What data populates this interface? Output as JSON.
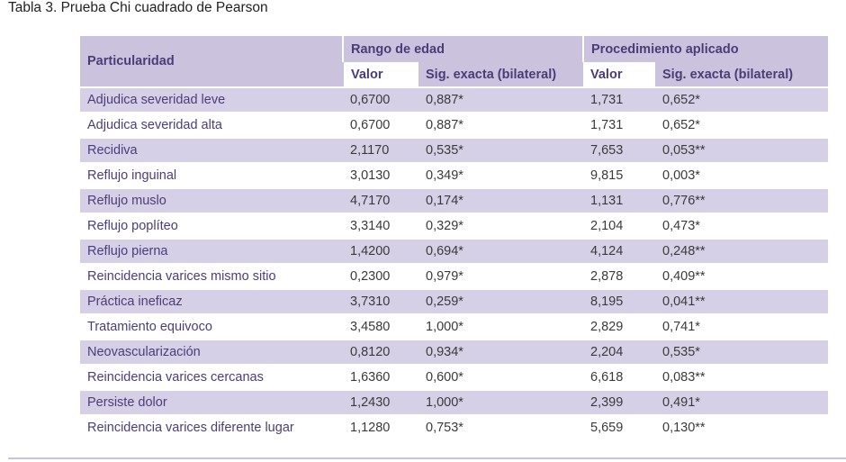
{
  "caption": "Tabla 3. Prueba Chi cuadrado de Pearson",
  "header": {
    "particularidad": "Particularidad",
    "group1": "Rango de edad",
    "group2": "Procedimiento aplicado",
    "valor1": "Valor",
    "sig1": "Sig. exacta (bilateral)",
    "valor2": "Valor",
    "sig2": "Sig. exacta (bilateral)"
  },
  "rows": [
    {
      "name": "Adjudica severidad leve",
      "edad_valor": "0,6700",
      "edad_sig": "0,887*",
      "proc_valor": "1,731",
      "proc_sig": "0,652*"
    },
    {
      "name": "Adjudica severidad alta",
      "edad_valor": "0,6700",
      "edad_sig": "0,887*",
      "proc_valor": "1,731",
      "proc_sig": "0,652*"
    },
    {
      "name": "Recidiva",
      "edad_valor": "2,1170",
      "edad_sig": "0,535*",
      "proc_valor": "7,653",
      "proc_sig": "0,053**"
    },
    {
      "name": "Reflujo inguinal",
      "edad_valor": "3,0130",
      "edad_sig": "0,349*",
      "proc_valor": "9,815",
      "proc_sig": "0,003*"
    },
    {
      "name": "Reflujo muslo",
      "edad_valor": "4,7170",
      "edad_sig": "0,174*",
      "proc_valor": "1,131",
      "proc_sig": "0,776**"
    },
    {
      "name": "Reflujo poplíteo",
      "edad_valor": "3,3140",
      "edad_sig": "0,329*",
      "proc_valor": "2,104",
      "proc_sig": "0,473*"
    },
    {
      "name": "Reflujo pierna",
      "edad_valor": "1,4200",
      "edad_sig": "0,694*",
      "proc_valor": "4,124",
      "proc_sig": "0,248**"
    },
    {
      "name": "Reincidencia varices mismo sitio",
      "edad_valor": "0,2300",
      "edad_sig": "0,979*",
      "proc_valor": "2,878",
      "proc_sig": "0,409**"
    },
    {
      "name": "Práctica ineficaz",
      "edad_valor": "3,7310",
      "edad_sig": "0,259*",
      "proc_valor": "8,195",
      "proc_sig": "0,041**"
    },
    {
      "name": "Tratamiento equivoco",
      "edad_valor": "3,4580",
      "edad_sig": "1,000*",
      "proc_valor": "2,829",
      "proc_sig": "0,741*"
    },
    {
      "name": "Neovascularización",
      "edad_valor": "0,8120",
      "edad_sig": "0,934*",
      "proc_valor": "2,204",
      "proc_sig": "0,535*"
    },
    {
      "name": "Reincidencia varices cercanas",
      "edad_valor": "1,6360",
      "edad_sig": "0,600*",
      "proc_valor": "6,618",
      "proc_sig": "0,083**"
    },
    {
      "name": "Persiste dolor",
      "edad_valor": "1,2430",
      "edad_sig": "1,000*",
      "proc_valor": "2,399",
      "proc_sig": "0,491*"
    },
    {
      "name": "Reincidencia varices diferente lugar",
      "edad_valor": "1,1280",
      "edad_sig": "0,753*",
      "proc_valor": "5,659",
      "proc_sig": "0,130**"
    }
  ],
  "colors": {
    "header_bg": "#cbc3de",
    "row_shade": "#d6d0e6",
    "text_purple": "#4a3c78"
  }
}
